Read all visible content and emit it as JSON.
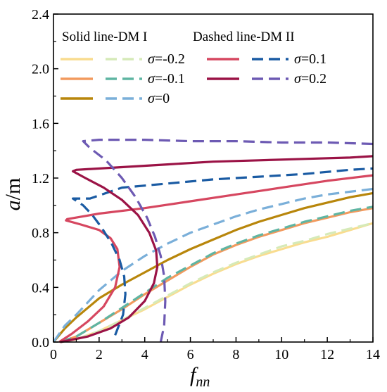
{
  "chart_data": {
    "type": "line",
    "xlabel_main": "f",
    "xlabel_sub": "nn",
    "ylabel_main": "a",
    "ylabel_unit": "/m",
    "xlim": [
      0,
      14
    ],
    "ylim": [
      0,
      2.4
    ],
    "x_ticks": [
      "0",
      "2",
      "4",
      "6",
      "8",
      "10",
      "12",
      "14"
    ],
    "y_ticks": [
      "0.0",
      "0.4",
      "0.8",
      "1.2",
      "1.6",
      "2.0",
      "2.4"
    ],
    "grid": false,
    "legend_position": "top",
    "legend_headers": {
      "solid": "Solid line-DM I",
      "dashed": "Dashed line-DM II"
    },
    "legend_entries": [
      {
        "sigma": "σ",
        "value": "=-0.2",
        "solid_color": "#f9dc8f",
        "dashed_color": "#d6eab8"
      },
      {
        "sigma": "σ",
        "value": "=-0.1",
        "solid_color": "#f29a5e",
        "dashed_color": "#5fb5a2"
      },
      {
        "sigma": "σ",
        "value": "=0",
        "solid_color": "#b8860b",
        "dashed_color": "#7aafd9"
      },
      {
        "sigma": "σ",
        "value": "=0.1",
        "solid_color": "#d64760",
        "dashed_color": "#1a5ba3"
      },
      {
        "sigma": "σ",
        "value": "=0.2",
        "solid_color": "#9b1346",
        "dashed_color": "#6d5ab3"
      }
    ],
    "series": [
      {
        "sigma": -0.2,
        "style": "solid",
        "color": "#f9dc8f",
        "x": [
          0.3,
          1,
          2,
          3,
          4,
          5,
          6,
          7,
          8,
          9,
          10,
          11,
          12,
          13,
          14
        ],
        "y": [
          0.0,
          0.02,
          0.08,
          0.16,
          0.24,
          0.33,
          0.42,
          0.5,
          0.57,
          0.63,
          0.68,
          0.73,
          0.77,
          0.82,
          0.87
        ]
      },
      {
        "sigma": -0.2,
        "style": "dashed",
        "color": "#d6eab8",
        "x": [
          0.3,
          1,
          2,
          3,
          4,
          5,
          6,
          7,
          8,
          9,
          10,
          11,
          12,
          13,
          14
        ],
        "y": [
          0.0,
          0.02,
          0.08,
          0.16,
          0.25,
          0.34,
          0.43,
          0.51,
          0.58,
          0.64,
          0.7,
          0.74,
          0.79,
          0.83,
          0.87
        ]
      },
      {
        "sigma": -0.1,
        "style": "solid",
        "color": "#f29a5e",
        "x": [
          0.3,
          1,
          2,
          3,
          4,
          5,
          6,
          7,
          8,
          9,
          10,
          11,
          12,
          13,
          14
        ],
        "y": [
          0.0,
          0.04,
          0.14,
          0.24,
          0.35,
          0.45,
          0.55,
          0.64,
          0.71,
          0.77,
          0.82,
          0.87,
          0.91,
          0.95,
          0.98
        ]
      },
      {
        "sigma": -0.1,
        "style": "dashed",
        "color": "#5fb5a2",
        "x": [
          0.3,
          1,
          2,
          3,
          4,
          5,
          6,
          7,
          8,
          9,
          10,
          11,
          12,
          13,
          14
        ],
        "y": [
          0.0,
          0.04,
          0.14,
          0.25,
          0.36,
          0.47,
          0.56,
          0.65,
          0.72,
          0.78,
          0.83,
          0.88,
          0.92,
          0.96,
          0.99
        ]
      },
      {
        "sigma": 0,
        "style": "solid",
        "color": "#b8860b",
        "x": [
          0,
          0.5,
          1,
          2,
          3,
          4,
          5,
          6,
          7,
          8,
          9,
          10,
          11,
          12,
          13,
          14
        ],
        "y": [
          0.0,
          0.1,
          0.18,
          0.32,
          0.42,
          0.51,
          0.6,
          0.68,
          0.75,
          0.82,
          0.88,
          0.93,
          0.98,
          1.02,
          1.06,
          1.09
        ]
      },
      {
        "sigma": 0,
        "style": "dashed",
        "color": "#7aafd9",
        "x": [
          0,
          0.5,
          1,
          2,
          3,
          4,
          5,
          6,
          7,
          8,
          9,
          10,
          11,
          12,
          13,
          14
        ],
        "y": [
          0.0,
          0.12,
          0.2,
          0.38,
          0.52,
          0.63,
          0.72,
          0.8,
          0.86,
          0.92,
          0.97,
          1.01,
          1.05,
          1.08,
          1.1,
          1.12
        ]
      },
      {
        "sigma": 0.1,
        "style": "solid",
        "color": "#d64760",
        "x": [
          0.25,
          0.8,
          1.5,
          2.2,
          2.7,
          2.9,
          2.8,
          2.5,
          2.0,
          1.2,
          0.55,
          0.6,
          2,
          4,
          6,
          8,
          10,
          12,
          14
        ],
        "y": [
          0.0,
          0.06,
          0.15,
          0.26,
          0.4,
          0.55,
          0.68,
          0.76,
          0.82,
          0.86,
          0.89,
          0.9,
          0.94,
          0.98,
          1.03,
          1.08,
          1.13,
          1.18,
          1.22
        ]
      },
      {
        "sigma": 0.1,
        "style": "dashed",
        "color": "#1a5ba3",
        "x": [
          2.7,
          3.05,
          3.15,
          3.1,
          2.9,
          2.55,
          2.1,
          1.7,
          1.3,
          0.85,
          1.6,
          3,
          5,
          7,
          9,
          11,
          13,
          14
        ],
        "y": [
          0.05,
          0.2,
          0.35,
          0.48,
          0.6,
          0.72,
          0.84,
          0.93,
          1.0,
          1.05,
          1.05,
          1.13,
          1.16,
          1.19,
          1.21,
          1.23,
          1.26,
          1.27
        ]
      },
      {
        "sigma": 0.2,
        "style": "solid",
        "color": "#9b1346",
        "x": [
          0.3,
          1.5,
          2.5,
          3.3,
          4.0,
          4.4,
          4.55,
          4.5,
          4.2,
          3.7,
          3.0,
          2.2,
          1.4,
          0.85,
          1.0,
          3,
          5,
          7,
          9,
          11,
          13,
          14
        ],
        "y": [
          0.0,
          0.04,
          0.1,
          0.18,
          0.3,
          0.43,
          0.55,
          0.67,
          0.8,
          0.93,
          1.04,
          1.13,
          1.2,
          1.25,
          1.26,
          1.28,
          1.3,
          1.32,
          1.33,
          1.34,
          1.35,
          1.36
        ]
      },
      {
        "sigma": 0.2,
        "style": "dashed",
        "color": "#6d5ab3",
        "x": [
          4.7,
          4.85,
          4.9,
          4.85,
          4.7,
          4.45,
          4.1,
          3.6,
          3.0,
          2.3,
          1.6,
          1.3,
          2,
          4,
          6,
          8,
          10,
          12,
          14
        ],
        "y": [
          0.0,
          0.12,
          0.3,
          0.48,
          0.63,
          0.77,
          0.91,
          1.06,
          1.2,
          1.33,
          1.42,
          1.47,
          1.48,
          1.48,
          1.47,
          1.47,
          1.46,
          1.46,
          1.45
        ]
      }
    ]
  }
}
